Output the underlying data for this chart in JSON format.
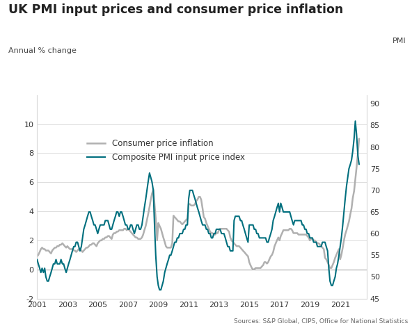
{
  "title": "UK PMI input prices and consumer price inflation",
  "ylabel_left": "Annual % change",
  "ylabel_right": "PMI",
  "source": "Sources: S&P Global, CIPS, Office for National Statistics",
  "ylim_left": [
    -2,
    12
  ],
  "ylim_right": [
    45,
    92
  ],
  "yticks_left": [
    -2,
    0,
    2,
    4,
    6,
    8,
    10
  ],
  "yticks_right": [
    45,
    50,
    55,
    60,
    65,
    70,
    75,
    80,
    85,
    90
  ],
  "cpi_color": "#b0b0b0",
  "pmi_color": "#006f7e",
  "cpi_linewidth": 1.8,
  "pmi_linewidth": 1.5,
  "background_color": "#ffffff",
  "cpi_label": "Consumer price inflation",
  "pmi_label": "Composite PMI input price index",
  "xtick_years": [
    2001,
    2003,
    2005,
    2007,
    2009,
    2011,
    2013,
    2015,
    2017,
    2019,
    2021
  ],
  "cpi_data_x": [
    2001.0,
    2001.08,
    2001.17,
    2001.25,
    2001.33,
    2001.42,
    2001.5,
    2001.58,
    2001.67,
    2001.75,
    2001.83,
    2001.92,
    2002.0,
    2002.08,
    2002.17,
    2002.25,
    2002.33,
    2002.42,
    2002.5,
    2002.58,
    2002.67,
    2002.75,
    2002.83,
    2002.92,
    2003.0,
    2003.08,
    2003.17,
    2003.25,
    2003.33,
    2003.42,
    2003.5,
    2003.58,
    2003.67,
    2003.75,
    2003.83,
    2003.92,
    2004.0,
    2004.08,
    2004.17,
    2004.25,
    2004.33,
    2004.42,
    2004.5,
    2004.58,
    2004.67,
    2004.75,
    2004.83,
    2004.92,
    2005.0,
    2005.08,
    2005.17,
    2005.25,
    2005.33,
    2005.42,
    2005.5,
    2005.58,
    2005.67,
    2005.75,
    2005.83,
    2005.92,
    2006.0,
    2006.08,
    2006.17,
    2006.25,
    2006.33,
    2006.42,
    2006.5,
    2006.58,
    2006.67,
    2006.75,
    2006.83,
    2006.92,
    2007.0,
    2007.08,
    2007.17,
    2007.25,
    2007.33,
    2007.42,
    2007.5,
    2007.58,
    2007.67,
    2007.75,
    2007.83,
    2007.92,
    2008.0,
    2008.08,
    2008.17,
    2008.25,
    2008.33,
    2008.42,
    2008.5,
    2008.58,
    2008.67,
    2008.75,
    2008.83,
    2008.92,
    2009.0,
    2009.08,
    2009.17,
    2009.25,
    2009.33,
    2009.42,
    2009.5,
    2009.58,
    2009.67,
    2009.75,
    2009.83,
    2009.92,
    2010.0,
    2010.08,
    2010.17,
    2010.25,
    2010.33,
    2010.42,
    2010.5,
    2010.58,
    2010.67,
    2010.75,
    2010.83,
    2010.92,
    2011.0,
    2011.08,
    2011.17,
    2011.25,
    2011.33,
    2011.42,
    2011.5,
    2011.58,
    2011.67,
    2011.75,
    2011.83,
    2011.92,
    2012.0,
    2012.08,
    2012.17,
    2012.25,
    2012.33,
    2012.42,
    2012.5,
    2012.58,
    2012.67,
    2012.75,
    2012.83,
    2012.92,
    2013.0,
    2013.08,
    2013.17,
    2013.25,
    2013.33,
    2013.42,
    2013.5,
    2013.58,
    2013.67,
    2013.75,
    2013.83,
    2013.92,
    2014.0,
    2014.08,
    2014.17,
    2014.25,
    2014.33,
    2014.42,
    2014.5,
    2014.58,
    2014.67,
    2014.75,
    2014.83,
    2014.92,
    2015.0,
    2015.08,
    2015.17,
    2015.25,
    2015.33,
    2015.42,
    2015.5,
    2015.58,
    2015.67,
    2015.75,
    2015.83,
    2015.92,
    2016.0,
    2016.08,
    2016.17,
    2016.25,
    2016.33,
    2016.42,
    2016.5,
    2016.58,
    2016.67,
    2016.75,
    2016.83,
    2016.92,
    2017.0,
    2017.08,
    2017.17,
    2017.25,
    2017.33,
    2017.42,
    2017.5,
    2017.58,
    2017.67,
    2017.75,
    2017.83,
    2017.92,
    2018.0,
    2018.08,
    2018.17,
    2018.25,
    2018.33,
    2018.42,
    2018.5,
    2018.58,
    2018.67,
    2018.75,
    2018.83,
    2018.92,
    2019.0,
    2019.08,
    2019.17,
    2019.25,
    2019.33,
    2019.42,
    2019.5,
    2019.58,
    2019.67,
    2019.75,
    2019.83,
    2019.92,
    2020.0,
    2020.08,
    2020.17,
    2020.25,
    2020.33,
    2020.42,
    2020.5,
    2020.58,
    2020.67,
    2020.75,
    2020.83,
    2020.92,
    2021.0,
    2021.08,
    2021.17,
    2021.25,
    2021.33,
    2021.42,
    2021.5,
    2021.58,
    2021.67,
    2021.75,
    2021.83,
    2021.92,
    2022.0,
    2022.08,
    2022.17,
    2022.25
  ],
  "cpi_data_y": [
    0.9,
    1.0,
    1.2,
    1.4,
    1.5,
    1.4,
    1.4,
    1.3,
    1.3,
    1.3,
    1.2,
    1.1,
    1.3,
    1.4,
    1.5,
    1.5,
    1.6,
    1.6,
    1.7,
    1.7,
    1.8,
    1.7,
    1.6,
    1.5,
    1.6,
    1.5,
    1.4,
    1.4,
    1.4,
    1.3,
    1.3,
    1.2,
    1.3,
    1.4,
    1.4,
    1.3,
    1.2,
    1.3,
    1.4,
    1.5,
    1.5,
    1.6,
    1.7,
    1.7,
    1.8,
    1.8,
    1.7,
    1.6,
    1.8,
    1.9,
    2.0,
    2.0,
    2.1,
    2.1,
    2.2,
    2.2,
    2.3,
    2.3,
    2.2,
    2.1,
    2.4,
    2.5,
    2.5,
    2.6,
    2.6,
    2.7,
    2.7,
    2.7,
    2.7,
    2.8,
    2.8,
    2.7,
    2.8,
    2.7,
    2.6,
    2.5,
    2.4,
    2.3,
    2.2,
    2.2,
    2.1,
    2.1,
    2.1,
    2.2,
    2.4,
    2.7,
    3.0,
    3.4,
    3.8,
    4.3,
    4.8,
    5.2,
    5.5,
    4.5,
    3.5,
    2.0,
    3.2,
    3.0,
    2.8,
    2.5,
    2.2,
    1.9,
    1.6,
    1.5,
    1.5,
    1.5,
    1.5,
    1.8,
    3.7,
    3.6,
    3.5,
    3.4,
    3.3,
    3.3,
    3.2,
    3.1,
    3.2,
    3.3,
    3.4,
    3.5,
    4.5,
    4.5,
    4.4,
    4.4,
    4.4,
    4.5,
    4.7,
    4.8,
    5.0,
    5.0,
    4.8,
    4.2,
    3.6,
    3.5,
    3.2,
    3.0,
    2.8,
    2.6,
    2.5,
    2.5,
    2.4,
    2.4,
    2.5,
    2.5,
    2.7,
    2.8,
    2.8,
    2.8,
    2.8,
    2.8,
    2.8,
    2.7,
    2.6,
    2.2,
    2.0,
    1.9,
    1.8,
    1.7,
    1.6,
    1.6,
    1.6,
    1.5,
    1.4,
    1.3,
    1.2,
    1.1,
    1.0,
    0.9,
    0.5,
    0.3,
    0.1,
    0.0,
    0.0,
    0.1,
    0.1,
    0.1,
    0.1,
    0.1,
    0.2,
    0.3,
    0.5,
    0.5,
    0.4,
    0.5,
    0.7,
    0.9,
    1.0,
    1.2,
    1.6,
    1.8,
    2.0,
    2.2,
    2.0,
    2.3,
    2.5,
    2.7,
    2.7,
    2.7,
    2.7,
    2.7,
    2.8,
    2.8,
    2.7,
    2.5,
    2.5,
    2.5,
    2.5,
    2.4,
    2.4,
    2.4,
    2.4,
    2.4,
    2.4,
    2.4,
    2.3,
    2.2,
    2.0,
    2.1,
    2.1,
    2.0,
    2.0,
    1.9,
    1.8,
    1.8,
    1.7,
    1.6,
    1.5,
    1.4,
    0.8,
    0.7,
    0.5,
    0.3,
    0.1,
    0.1,
    0.3,
    0.5,
    0.8,
    1.0,
    1.2,
    1.4,
    0.7,
    1.0,
    1.5,
    2.0,
    2.4,
    2.7,
    3.0,
    3.3,
    3.8,
    4.2,
    4.9,
    5.4,
    6.2,
    7.0,
    8.0,
    9.0
  ],
  "pmi_data_x": [
    2001.0,
    2001.08,
    2001.17,
    2001.25,
    2001.33,
    2001.42,
    2001.5,
    2001.58,
    2001.67,
    2001.75,
    2001.83,
    2001.92,
    2002.0,
    2002.08,
    2002.17,
    2002.25,
    2002.33,
    2002.42,
    2002.5,
    2002.58,
    2002.67,
    2002.75,
    2002.83,
    2002.92,
    2003.0,
    2003.08,
    2003.17,
    2003.25,
    2003.33,
    2003.42,
    2003.5,
    2003.58,
    2003.67,
    2003.75,
    2003.83,
    2003.92,
    2004.0,
    2004.08,
    2004.17,
    2004.25,
    2004.33,
    2004.42,
    2004.5,
    2004.58,
    2004.67,
    2004.75,
    2004.83,
    2004.92,
    2005.0,
    2005.08,
    2005.17,
    2005.25,
    2005.33,
    2005.42,
    2005.5,
    2005.58,
    2005.67,
    2005.75,
    2005.83,
    2005.92,
    2006.0,
    2006.08,
    2006.17,
    2006.25,
    2006.33,
    2006.42,
    2006.5,
    2006.58,
    2006.67,
    2006.75,
    2006.83,
    2006.92,
    2007.0,
    2007.08,
    2007.17,
    2007.25,
    2007.33,
    2007.42,
    2007.5,
    2007.58,
    2007.67,
    2007.75,
    2007.83,
    2007.92,
    2008.0,
    2008.08,
    2008.17,
    2008.25,
    2008.33,
    2008.42,
    2008.5,
    2008.58,
    2008.67,
    2008.75,
    2008.83,
    2008.92,
    2009.0,
    2009.08,
    2009.17,
    2009.25,
    2009.33,
    2009.42,
    2009.5,
    2009.58,
    2009.67,
    2009.75,
    2009.83,
    2009.92,
    2010.0,
    2010.08,
    2010.17,
    2010.25,
    2010.33,
    2010.42,
    2010.5,
    2010.58,
    2010.67,
    2010.75,
    2010.83,
    2010.92,
    2011.0,
    2011.08,
    2011.17,
    2011.25,
    2011.33,
    2011.42,
    2011.5,
    2011.58,
    2011.67,
    2011.75,
    2011.83,
    2011.92,
    2012.0,
    2012.08,
    2012.17,
    2012.25,
    2012.33,
    2012.42,
    2012.5,
    2012.58,
    2012.67,
    2012.75,
    2012.83,
    2012.92,
    2013.0,
    2013.08,
    2013.17,
    2013.25,
    2013.33,
    2013.42,
    2013.5,
    2013.58,
    2013.67,
    2013.75,
    2013.83,
    2013.92,
    2014.0,
    2014.08,
    2014.17,
    2014.25,
    2014.33,
    2014.42,
    2014.5,
    2014.58,
    2014.67,
    2014.75,
    2014.83,
    2014.92,
    2015.0,
    2015.08,
    2015.17,
    2015.25,
    2015.33,
    2015.42,
    2015.5,
    2015.58,
    2015.67,
    2015.75,
    2015.83,
    2015.92,
    2016.0,
    2016.08,
    2016.17,
    2016.25,
    2016.33,
    2016.42,
    2016.5,
    2016.58,
    2016.67,
    2016.75,
    2016.83,
    2016.92,
    2017.0,
    2017.08,
    2017.17,
    2017.25,
    2017.33,
    2017.42,
    2017.5,
    2017.58,
    2017.67,
    2017.75,
    2017.83,
    2017.92,
    2018.0,
    2018.08,
    2018.17,
    2018.25,
    2018.33,
    2018.42,
    2018.5,
    2018.58,
    2018.67,
    2018.75,
    2018.83,
    2018.92,
    2019.0,
    2019.08,
    2019.17,
    2019.25,
    2019.33,
    2019.42,
    2019.5,
    2019.58,
    2019.67,
    2019.75,
    2019.83,
    2019.92,
    2020.0,
    2020.08,
    2020.17,
    2020.25,
    2020.33,
    2020.42,
    2020.5,
    2020.58,
    2020.67,
    2020.75,
    2020.83,
    2020.92,
    2021.0,
    2021.08,
    2021.17,
    2021.25,
    2021.33,
    2021.42,
    2021.5,
    2021.58,
    2021.67,
    2021.75,
    2021.83,
    2021.92,
    2022.0,
    2022.08,
    2022.17,
    2022.25
  ],
  "pmi_data_y": [
    54,
    53,
    52,
    51,
    52,
    51,
    52,
    50,
    49,
    49,
    50,
    51,
    52,
    53,
    53,
    54,
    53,
    53,
    53,
    54,
    53,
    53,
    52,
    51,
    52,
    53,
    54,
    55,
    56,
    57,
    57,
    58,
    58,
    57,
    56,
    57,
    59,
    61,
    62,
    63,
    64,
    65,
    65,
    64,
    63,
    62,
    62,
    61,
    60,
    61,
    62,
    62,
    62,
    62,
    63,
    63,
    63,
    62,
    61,
    61,
    62,
    63,
    64,
    65,
    65,
    64,
    65,
    65,
    64,
    63,
    62,
    62,
    61,
    61,
    62,
    62,
    61,
    60,
    61,
    62,
    62,
    61,
    61,
    62,
    64,
    66,
    68,
    70,
    72,
    74,
    73,
    72,
    70,
    62,
    55,
    50,
    48,
    47,
    47,
    48,
    49,
    51,
    52,
    53,
    54,
    55,
    55,
    56,
    57,
    58,
    58,
    59,
    59,
    60,
    60,
    60,
    61,
    61,
    62,
    62,
    68,
    70,
    70,
    70,
    69,
    68,
    67,
    66,
    65,
    64,
    63,
    62,
    62,
    62,
    61,
    61,
    60,
    60,
    59,
    59,
    60,
    60,
    61,
    61,
    61,
    61,
    60,
    60,
    60,
    59,
    58,
    57,
    57,
    56,
    56,
    56,
    63,
    64,
    64,
    64,
    64,
    63,
    63,
    62,
    61,
    60,
    59,
    58,
    62,
    62,
    62,
    62,
    61,
    61,
    60,
    60,
    59,
    59,
    59,
    59,
    59,
    59,
    58,
    58,
    59,
    60,
    61,
    63,
    64,
    65,
    66,
    67,
    65,
    67,
    66,
    65,
    65,
    65,
    65,
    65,
    65,
    64,
    63,
    62,
    63,
    63,
    63,
    63,
    63,
    63,
    62,
    62,
    61,
    61,
    60,
    60,
    59,
    59,
    59,
    58,
    58,
    58,
    57,
    57,
    57,
    57,
    58,
    58,
    58,
    57,
    56,
    52,
    49,
    48,
    48,
    49,
    50,
    52,
    53,
    55,
    57,
    59,
    62,
    65,
    68,
    71,
    73,
    75,
    76,
    77,
    79,
    82,
    86,
    83,
    78,
    76
  ]
}
